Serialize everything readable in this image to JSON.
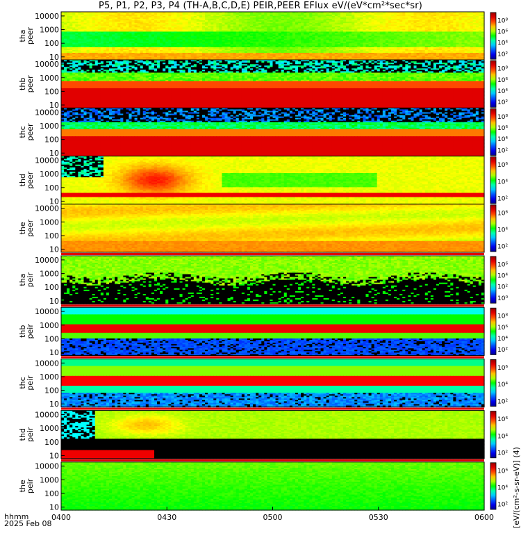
{
  "title": "P5, P1, P2, P3, P4 (TH-A,B,C,D,E) PEIR,PEER EFlux eV/(eV*cm²*sec*sr)",
  "time_axis": {
    "label_line1": "hhmm",
    "label_line2": "2025 Feb 08",
    "ticks": [
      "0400",
      "0430",
      "0500",
      "0530",
      "0600"
    ]
  },
  "colorbar_units": "[eV/(cm²-s-sr-eV)] (4)",
  "colors": {
    "fill_value": "#000000",
    "separator_red": "#e00000",
    "background": "#ffffff"
  },
  "chart_data": [
    {
      "type": "heatmap",
      "id": "tha_peer",
      "ylabel": [
        "tha",
        "peer"
      ],
      "yticks": [
        "10000",
        "1000",
        "100",
        "10"
      ],
      "ylog": true,
      "ylim": [
        6,
        20000
      ],
      "cbar_ticks": [
        "10⁸",
        "10⁶",
        "10⁴",
        "10²"
      ],
      "clim": [
        10,
        1000000000.0
      ],
      "model": "tha_peer",
      "gap_after": false
    },
    {
      "type": "heatmap",
      "id": "thb_peer",
      "ylabel": [
        "thb",
        "peer"
      ],
      "yticks": [
        "10000",
        "1000",
        "100",
        "10"
      ],
      "ylog": true,
      "ylim": [
        6,
        20000
      ],
      "cbar_ticks": [
        "10⁸",
        "10⁶",
        "10⁴",
        "10²"
      ],
      "clim": [
        10,
        1000000000.0
      ],
      "model": "thb_peer",
      "gap_after": false
    },
    {
      "type": "heatmap",
      "id": "thc_peer",
      "ylabel": [
        "thc",
        "peer"
      ],
      "yticks": [
        "10000",
        "1000",
        "100",
        "10"
      ],
      "ylog": true,
      "ylim": [
        6,
        20000
      ],
      "cbar_ticks": [
        "10⁸",
        "10⁶",
        "10⁴",
        "10²"
      ],
      "clim": [
        10,
        1000000000.0
      ],
      "model": "thc_peer",
      "gap_after": false
    },
    {
      "type": "heatmap",
      "id": "thd_peer",
      "ylabel": [
        "thd",
        "peer"
      ],
      "yticks": [
        "10000",
        "1000",
        "100",
        "10"
      ],
      "ylog": true,
      "ylim": [
        6,
        20000
      ],
      "cbar_ticks": [
        "10⁶",
        "10⁴",
        "10²"
      ],
      "clim": [
        10,
        100000000.0
      ],
      "model": "thd_peer",
      "gap_after": false
    },
    {
      "type": "heatmap",
      "id": "the_peer",
      "ylabel": [
        "the",
        "peer"
      ],
      "yticks": [
        "10000",
        "1000",
        "100",
        "10"
      ],
      "ylog": true,
      "ylim": [
        6,
        20000
      ],
      "cbar_ticks": [
        "10⁶",
        "10⁴",
        "10²"
      ],
      "clim": [
        10,
        100000000.0
      ],
      "model": "the_peer",
      "gap_after": true
    },
    {
      "type": "heatmap",
      "id": "tha_peir",
      "ylabel": [
        "tha",
        "peir"
      ],
      "yticks": [
        "10000",
        "1000",
        "100",
        "10"
      ],
      "ylog": true,
      "ylim": [
        6,
        20000
      ],
      "cbar_ticks": [
        "10⁶",
        "10⁴",
        "10²",
        "10⁰"
      ],
      "clim": [
        1,
        10000000.0
      ],
      "model": "tha_peir",
      "gap_after": true
    },
    {
      "type": "heatmap",
      "id": "thb_peir",
      "ylabel": [
        "thb",
        "peir"
      ],
      "yticks": [
        "10000",
        "1000",
        "100",
        "10"
      ],
      "ylog": true,
      "ylim": [
        6,
        20000
      ],
      "cbar_ticks": [
        "10⁸",
        "10⁶",
        "10⁴",
        "10²"
      ],
      "clim": [
        10,
        1000000000.0
      ],
      "model": "thb_peir",
      "gap_after": true
    },
    {
      "type": "heatmap",
      "id": "thc_peir",
      "ylabel": [
        "thc",
        "peir"
      ],
      "yticks": [
        "10000",
        "1000",
        "100",
        "10"
      ],
      "ylog": true,
      "ylim": [
        6,
        20000
      ],
      "cbar_ticks": [
        "10⁶",
        "10⁴",
        "10²"
      ],
      "clim": [
        10,
        100000000.0
      ],
      "model": "thc_peir",
      "gap_after": true
    },
    {
      "type": "heatmap",
      "id": "thd_peir",
      "ylabel": [
        "thd",
        "peir"
      ],
      "yticks": [
        "10000",
        "1000",
        "100",
        "10"
      ],
      "ylog": true,
      "ylim": [
        6,
        20000
      ],
      "cbar_ticks": [
        "10⁶",
        "10⁴",
        "10²"
      ],
      "clim": [
        10,
        100000000.0
      ],
      "model": "thd_peir",
      "gap_after": true
    },
    {
      "type": "heatmap",
      "id": "the_peir",
      "ylabel": [
        "the",
        "peir"
      ],
      "yticks": [
        "10000",
        "1000",
        "100",
        "10"
      ],
      "ylog": true,
      "ylim": [
        6,
        20000
      ],
      "cbar_ticks": [
        "10⁶",
        "10⁴",
        "10²"
      ],
      "clim": [
        10,
        100000000.0
      ],
      "model": "the_peir",
      "gap_after": false
    }
  ]
}
